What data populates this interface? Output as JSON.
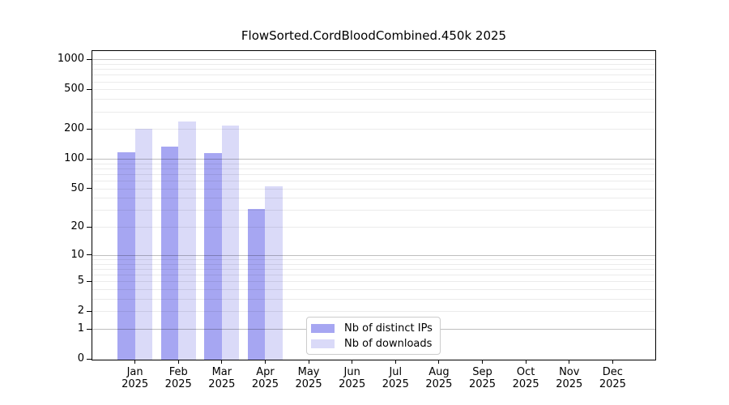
{
  "chart_data": {
    "type": "bar",
    "title": "FlowSorted.CordBloodCombined.450k 2025",
    "categories": [
      {
        "month": "Jan",
        "year": "2025"
      },
      {
        "month": "Feb",
        "year": "2025"
      },
      {
        "month": "Mar",
        "year": "2025"
      },
      {
        "month": "Apr",
        "year": "2025"
      },
      {
        "month": "May",
        "year": "2025"
      },
      {
        "month": "Jun",
        "year": "2025"
      },
      {
        "month": "Jul",
        "year": "2025"
      },
      {
        "month": "Aug",
        "year": "2025"
      },
      {
        "month": "Sep",
        "year": "2025"
      },
      {
        "month": "Oct",
        "year": "2025"
      },
      {
        "month": "Nov",
        "year": "2025"
      },
      {
        "month": "Dec",
        "year": "2025"
      }
    ],
    "series": [
      {
        "name": "Nb of distinct IPs",
        "color": "#a6a6f2",
        "values": [
          117,
          133,
          114,
          31,
          null,
          null,
          null,
          null,
          null,
          null,
          null,
          null
        ]
      },
      {
        "name": "Nb of downloads",
        "color": "#dadaf8",
        "values": [
          203,
          240,
          215,
          53,
          null,
          null,
          null,
          null,
          null,
          null,
          null,
          null
        ]
      }
    ],
    "y_axis": {
      "ticks": [
        0,
        1,
        2,
        5,
        10,
        20,
        50,
        100,
        200,
        500,
        1000
      ],
      "minor_gridlines": [
        3,
        4,
        6,
        7,
        8,
        9,
        30,
        40,
        60,
        70,
        80,
        90,
        300,
        400,
        600,
        700,
        800,
        900
      ],
      "decade_ticks": [
        1,
        10,
        100,
        1000
      ],
      "scale": "log10(1+value)",
      "ylim": [
        0,
        1200
      ]
    },
    "grid": "horizontal",
    "legend": {
      "position": "bottom-center"
    }
  }
}
